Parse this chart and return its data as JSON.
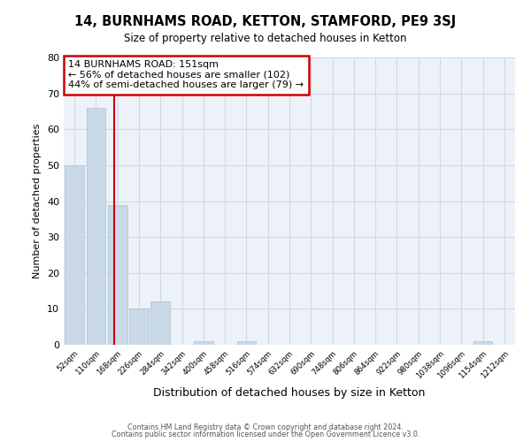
{
  "title": "14, BURNHAMS ROAD, KETTON, STAMFORD, PE9 3SJ",
  "subtitle": "Size of property relative to detached houses in Ketton",
  "xlabel": "Distribution of detached houses by size in Ketton",
  "ylabel": "Number of detached properties",
  "bin_labels": [
    "52sqm",
    "110sqm",
    "168sqm",
    "226sqm",
    "284sqm",
    "342sqm",
    "400sqm",
    "458sqm",
    "516sqm",
    "574sqm",
    "632sqm",
    "690sqm",
    "748sqm",
    "806sqm",
    "864sqm",
    "922sqm",
    "980sqm",
    "1038sqm",
    "1096sqm",
    "1154sqm",
    "1212sqm"
  ],
  "bar_heights": [
    50,
    66,
    39,
    10,
    12,
    0,
    1,
    0,
    1,
    0,
    0,
    0,
    0,
    0,
    0,
    0,
    0,
    0,
    0,
    1,
    0
  ],
  "bar_color": "#c9d9e8",
  "bar_edge_color": "#a8bfd4",
  "grid_color": "#d0d8e8",
  "bg_color": "#edf2f9",
  "vline_x": 1.83,
  "annotation_text": "14 BURNHAMS ROAD: 151sqm\n← 56% of detached houses are smaller (102)\n44% of semi-detached houses are larger (79) →",
  "annotation_box_color": "#ffffff",
  "annotation_box_edge": "#cc0000",
  "vline_color": "#cc0000",
  "ylim": [
    0,
    80
  ],
  "yticks": [
    0,
    10,
    20,
    30,
    40,
    50,
    60,
    70,
    80
  ],
  "footer1": "Contains HM Land Registry data © Crown copyright and database right 2024.",
  "footer2": "Contains public sector information licensed under the Open Government Licence v3.0."
}
